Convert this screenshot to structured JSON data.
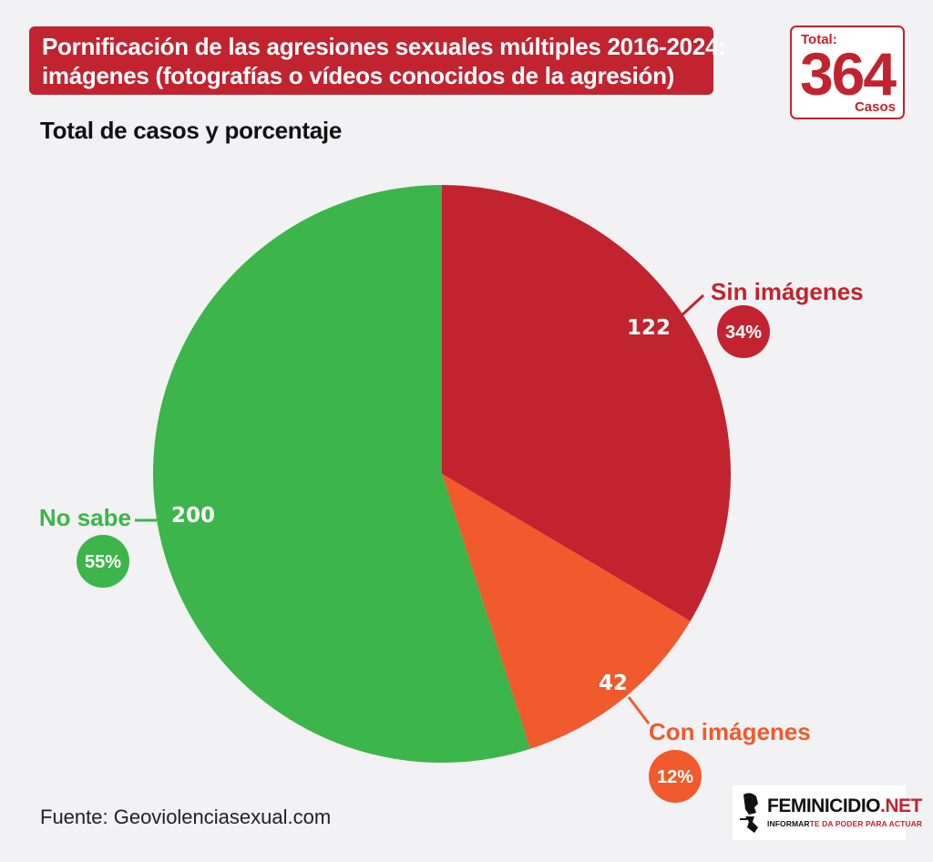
{
  "header": {
    "title_line1": "Pornificación de las agresiones sexuales múltiples 2016-2024:",
    "title_line2": "imágenes (fotografías o vídeos conocidos de la agresión)"
  },
  "total_badge": {
    "label": "Total:",
    "value": "364",
    "unit": "Casos"
  },
  "subtitle": "Total de casos y porcentaje",
  "source": "Fuente: Geoviolenciasexual.com",
  "logo": {
    "name_main": "FEMINICIDIO",
    "name_suffix": ".NET",
    "tagline_a": "INFORMAR",
    "tagline_b": "TE DA PODER PARA ACTUAR"
  },
  "chart_data": {
    "type": "pie",
    "title": "Pornificación de las agresiones sexuales múltiples 2016-2024: imágenes (fotografías o vídeos conocidos de la agresión)",
    "subtitle": "Total de casos y porcentaje",
    "total": 364,
    "slices": [
      {
        "label": "Sin imágenes",
        "value": 122,
        "value_label": "122",
        "percent_label": "34%",
        "color": "#c1232f"
      },
      {
        "label": "Con imágenes",
        "value": 42,
        "value_label": "42",
        "percent_label": "12%",
        "color": "#f05a2c"
      },
      {
        "label": "No sabe",
        "value": 200,
        "value_label": "200",
        "percent_label": "55%",
        "color": "#3cb54a"
      }
    ]
  },
  "colors": {
    "accent_red": "#c1232f",
    "orange": "#f05a2c",
    "green": "#3cb54a",
    "background": "#f2f2f4"
  }
}
